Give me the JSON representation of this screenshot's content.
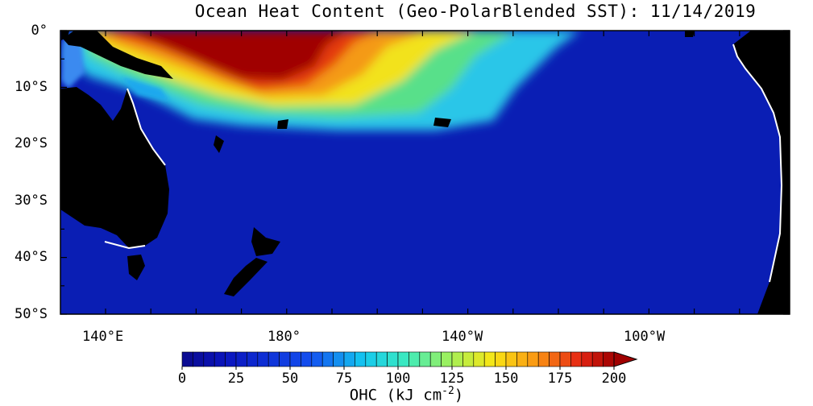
{
  "header": {
    "title": "Ocean Heat Content (Geo-PolarBlended SST): 11/14/2019"
  },
  "map": {
    "lat_labels": [
      "0°",
      "10°S",
      "20°S",
      "30°S",
      "40°S",
      "50°S"
    ],
    "lon_labels": [
      "140°E",
      "180°",
      "140°W",
      "100°W"
    ]
  },
  "colorbar": {
    "tick_labels": [
      "0",
      "25",
      "50",
      "75",
      "100",
      "125",
      "150",
      "175",
      "200"
    ],
    "units_prefix": "OHC (kJ cm",
    "units_exp": "-2",
    "units_suffix": ")",
    "range": [
      0,
      200
    ],
    "step": 5
  },
  "colors": {
    "land": "#000000",
    "ocean_low": "#0a1eb4",
    "ocean_high": "#a00000",
    "coast": "#ffffff"
  }
}
